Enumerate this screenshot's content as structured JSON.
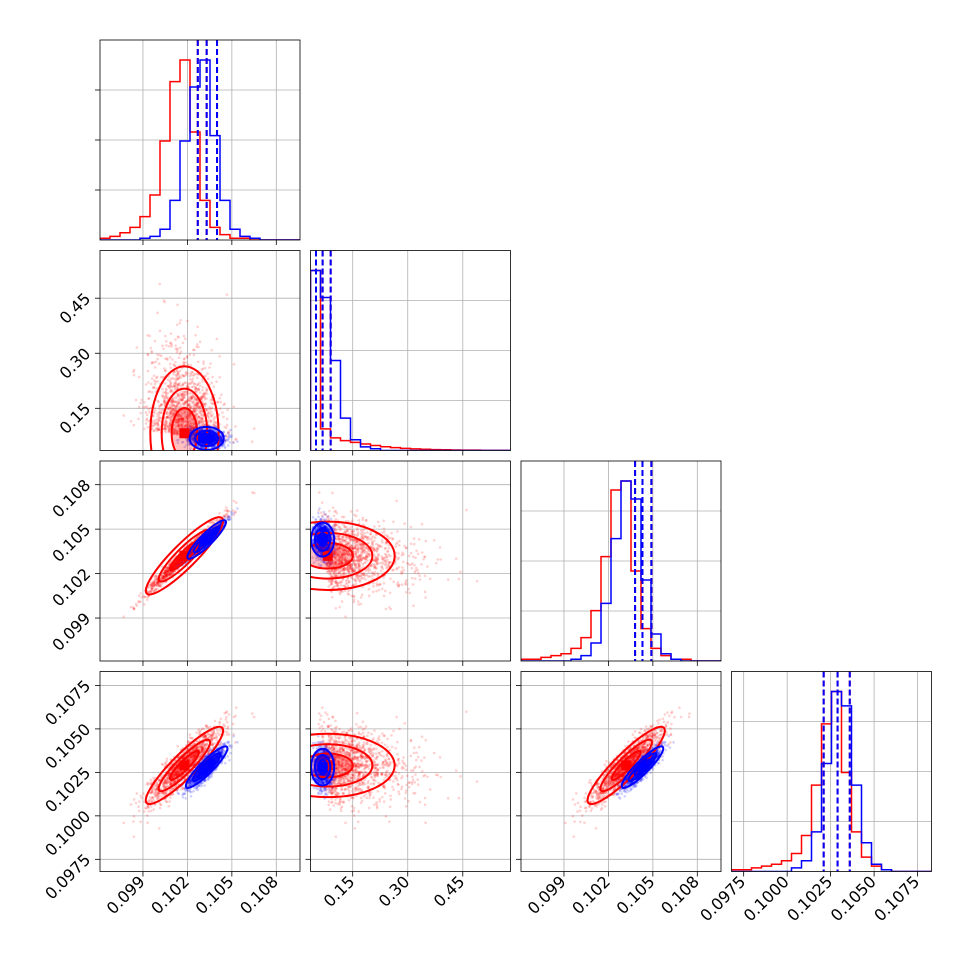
{
  "colors": {
    "model_a": "#ff0000",
    "model_b": "#0000ff",
    "grid": "#b0b0b0",
    "axes": "#000000"
  },
  "chart_data": {
    "type": "corner",
    "grid": true,
    "parameters": [
      {
        "ticks": [
          0.099,
          0.102,
          0.105,
          0.108
        ],
        "tick_labels": [
          "0.099",
          "0.102",
          "0.105",
          "0.108"
        ],
        "range": [
          0.0961,
          0.1096
        ]
      },
      {
        "ticks": [
          0.15,
          0.3,
          0.45
        ],
        "tick_labels": [
          "0.15",
          "0.30",
          "0.45"
        ],
        "range": [
          0.035,
          0.58
        ]
      },
      {
        "ticks": [
          0.099,
          0.102,
          0.105,
          0.108
        ],
        "tick_labels": [
          "0.099",
          "0.102",
          "0.105",
          "0.108"
        ],
        "range": [
          0.0961,
          0.1096
        ]
      },
      {
        "ticks": [
          0.0975,
          0.1,
          0.1025,
          0.105,
          0.1075
        ],
        "tick_labels": [
          "0.0975",
          "0.1000",
          "0.1025",
          "0.1050",
          "0.1075"
        ],
        "range": [
          0.0968,
          0.1083
        ]
      }
    ],
    "series": [
      {
        "color": "#ff0000",
        "means": [
          0.1018,
          0.082,
          0.1032,
          0.1029
        ],
        "stds": [
          0.0012,
          0.095,
          0.0012,
          0.00095
        ],
        "hist_heights": [
          [
            0.01,
            0.02,
            0.04,
            0.07,
            0.13,
            0.25,
            0.55,
            0.88,
            1.0,
            0.6,
            0.22,
            0.07,
            0.03,
            0.01,
            0.01,
            0,
            0,
            0,
            0,
            0
          ],
          [
            1.0,
            0.12,
            0.07,
            0.055,
            0.045,
            0.036,
            0.028,
            0.021,
            0.016,
            0.012,
            0.009,
            0.007,
            0.005,
            0.004,
            0.003,
            0.002,
            0.002,
            0.001,
            0.001,
            0.001
          ],
          [
            0.01,
            0.01,
            0.02,
            0.03,
            0.04,
            0.07,
            0.13,
            0.28,
            0.58,
            0.95,
            1.0,
            0.5,
            0.18,
            0.07,
            0.03,
            0.01,
            0.01,
            0,
            0,
            0
          ],
          [
            0.01,
            0.01,
            0.02,
            0.03,
            0.04,
            0.06,
            0.1,
            0.2,
            0.48,
            0.82,
            1.0,
            0.55,
            0.22,
            0.08,
            0.03,
            0.01,
            0,
            0,
            0,
            0
          ]
        ],
        "quantile_lines": [
          [
            0.1027,
            0.1033,
            0.104
          ],
          [
            0.05,
            0.068,
            0.09
          ],
          [
            0.1038,
            0.1043,
            0.1049
          ],
          [
            0.1021,
            0.1029,
            0.1036
          ]
        ]
      },
      {
        "color": "#0000ff",
        "means": [
          0.1033,
          0.068,
          0.1043,
          0.1028
        ],
        "stds": [
          0.0006,
          0.012,
          0.0006,
          0.00055
        ],
        "hist_heights": [
          [
            0,
            0,
            0,
            0,
            0.01,
            0.02,
            0.06,
            0.22,
            0.55,
            0.85,
            1.0,
            0.58,
            0.22,
            0.06,
            0.02,
            0.01,
            0,
            0,
            0,
            0
          ],
          [
            1.0,
            0.85,
            0.5,
            0.18,
            0.06,
            0.02,
            0.01,
            0,
            0,
            0,
            0,
            0,
            0,
            0,
            0,
            0,
            0,
            0,
            0,
            0
          ],
          [
            0,
            0,
            0,
            0,
            0,
            0.01,
            0.03,
            0.1,
            0.32,
            0.68,
            1.0,
            0.9,
            0.45,
            0.15,
            0.04,
            0.01,
            0,
            0,
            0,
            0
          ],
          [
            0,
            0,
            0,
            0,
            0,
            0,
            0.02,
            0.06,
            0.22,
            0.6,
            1.0,
            0.92,
            0.48,
            0.16,
            0.04,
            0.01,
            0,
            0,
            0,
            0
          ]
        ],
        "quantile_lines": [
          [
            0.1027,
            0.1033,
            0.104
          ],
          [
            0.05,
            0.068,
            0.09
          ],
          [
            0.1038,
            0.1043,
            0.1049
          ],
          [
            0.1021,
            0.1029,
            0.1036
          ]
        ]
      }
    ]
  }
}
